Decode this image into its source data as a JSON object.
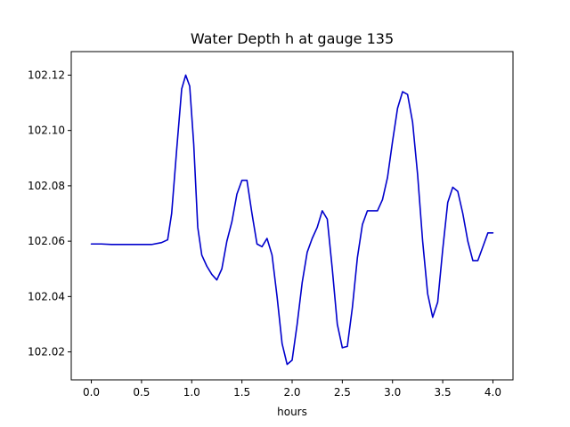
{
  "chart_data": {
    "type": "line",
    "title": "Water Depth h at gauge 135",
    "xlabel": "hours",
    "ylabel": "",
    "xlim": [
      -0.2,
      4.2
    ],
    "ylim": [
      102.0099,
      102.1285
    ],
    "x_ticks": [
      0.0,
      0.5,
      1.0,
      1.5,
      2.0,
      2.5,
      3.0,
      3.5,
      4.0
    ],
    "x_tick_labels": [
      "0.0",
      "0.5",
      "1.0",
      "1.5",
      "2.0",
      "2.5",
      "3.0",
      "3.5",
      "4.0"
    ],
    "y_ticks": [
      102.02,
      102.04,
      102.06,
      102.08,
      102.1,
      102.12
    ],
    "y_tick_labels": [
      "102.02",
      "102.04",
      "102.06",
      "102.08",
      "102.10",
      "102.12"
    ],
    "grid": false,
    "series": [
      {
        "color": "#0000cc",
        "x": [
          0.0,
          0.1,
          0.2,
          0.4,
          0.6,
          0.7,
          0.76,
          0.8,
          0.85,
          0.9,
          0.94,
          0.98,
          1.02,
          1.06,
          1.1,
          1.15,
          1.2,
          1.25,
          1.3,
          1.35,
          1.4,
          1.45,
          1.5,
          1.55,
          1.6,
          1.65,
          1.7,
          1.75,
          1.8,
          1.85,
          1.9,
          1.95,
          2.0,
          2.05,
          2.1,
          2.15,
          2.2,
          2.25,
          2.3,
          2.35,
          2.4,
          2.45,
          2.5,
          2.55,
          2.6,
          2.65,
          2.7,
          2.75,
          2.8,
          2.85,
          2.9,
          2.95,
          3.0,
          3.05,
          3.1,
          3.15,
          3.2,
          3.25,
          3.3,
          3.35,
          3.4,
          3.45,
          3.5,
          3.55,
          3.6,
          3.65,
          3.7,
          3.75,
          3.8,
          3.85,
          3.9,
          3.95,
          4.0
        ],
        "y": [
          102.059,
          102.059,
          102.0588,
          102.0588,
          102.0588,
          102.0595,
          102.0605,
          102.07,
          102.093,
          102.115,
          102.12,
          102.116,
          102.095,
          102.065,
          102.055,
          102.051,
          102.048,
          102.046,
          102.05,
          102.06,
          102.067,
          102.077,
          102.082,
          102.082,
          102.07,
          102.059,
          102.058,
          102.061,
          102.055,
          102.04,
          102.023,
          102.0155,
          102.017,
          102.03,
          102.045,
          102.056,
          102.061,
          102.065,
          102.071,
          102.068,
          102.05,
          102.03,
          102.0215,
          102.022,
          102.036,
          102.054,
          102.066,
          102.071,
          102.071,
          102.071,
          102.075,
          102.083,
          102.096,
          102.108,
          102.114,
          102.113,
          102.103,
          102.084,
          102.06,
          102.041,
          102.0325,
          102.038,
          102.057,
          102.074,
          102.0795,
          102.078,
          102.07,
          102.06,
          102.053,
          102.053,
          102.058,
          102.063,
          102.063
        ]
      }
    ]
  }
}
